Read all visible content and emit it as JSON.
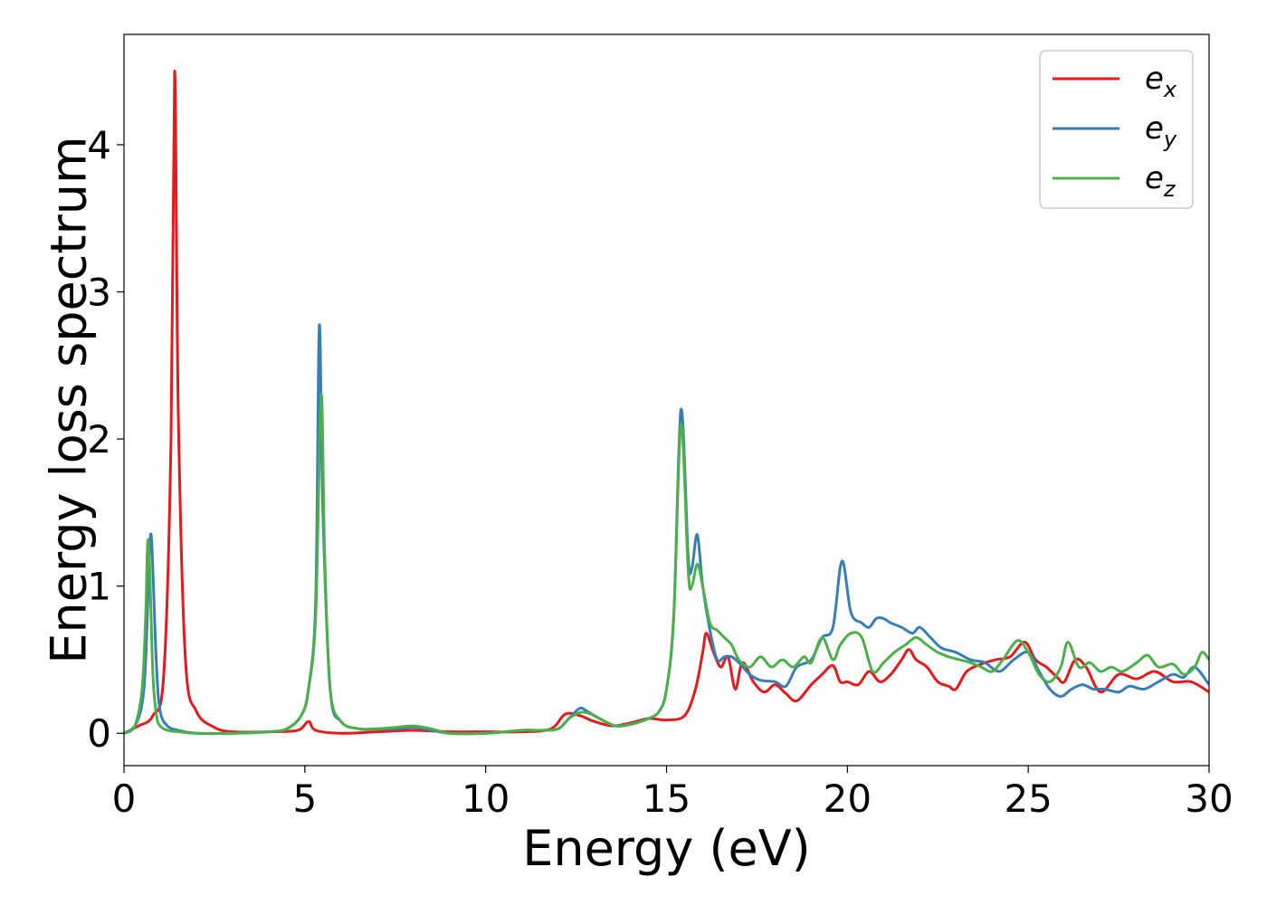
{
  "chart_data": {
    "type": "line",
    "xlabel": "Energy (eV)",
    "ylabel": "Energy loss spectrum",
    "xlim": [
      0,
      30
    ],
    "ylim": [
      -0.22,
      4.75
    ],
    "xticks": [
      0,
      5,
      10,
      15,
      20,
      25,
      30
    ],
    "yticks": [
      0,
      1,
      2,
      3,
      4
    ],
    "grid": false,
    "legend_position": "top-right",
    "series": [
      {
        "name": "e",
        "subscript": "x",
        "color": "#e41a1c",
        "x": [
          0,
          0.4,
          0.8,
          1.1,
          1.3,
          1.4,
          1.5,
          1.7,
          2.0,
          2.5,
          3.0,
          4.0,
          4.8,
          5.1,
          5.3,
          6.0,
          7.0,
          8.0,
          9.0,
          10.0,
          11.0,
          11.8,
          12.2,
          12.6,
          13.0,
          13.5,
          14.0,
          14.5,
          15.0,
          15.5,
          15.8,
          16.0,
          16.1,
          16.3,
          16.5,
          16.7,
          16.9,
          17.1,
          17.4,
          17.7,
          18.0,
          18.3,
          18.6,
          19.0,
          19.3,
          19.6,
          19.8,
          20.0,
          20.3,
          20.6,
          20.9,
          21.2,
          21.5,
          21.7,
          21.9,
          22.2,
          22.5,
          22.8,
          23.0,
          23.3,
          23.7,
          24.1,
          24.5,
          24.9,
          25.2,
          25.5,
          25.8,
          26.0,
          26.3,
          26.6,
          27.0,
          27.5,
          28.0,
          28.5,
          29.0,
          29.5,
          30.0
        ],
        "y": [
          0.0,
          0.05,
          0.12,
          0.4,
          2.0,
          4.5,
          2.2,
          0.5,
          0.15,
          0.04,
          0.01,
          0.01,
          0.02,
          0.08,
          0.02,
          0.0,
          0.01,
          0.02,
          0.01,
          0.01,
          0.01,
          0.03,
          0.13,
          0.12,
          0.08,
          0.05,
          0.07,
          0.1,
          0.09,
          0.12,
          0.3,
          0.55,
          0.68,
          0.55,
          0.45,
          0.52,
          0.3,
          0.48,
          0.35,
          0.28,
          0.33,
          0.27,
          0.22,
          0.33,
          0.4,
          0.46,
          0.35,
          0.35,
          0.33,
          0.42,
          0.35,
          0.4,
          0.5,
          0.57,
          0.5,
          0.45,
          0.35,
          0.32,
          0.3,
          0.42,
          0.47,
          0.5,
          0.52,
          0.62,
          0.5,
          0.45,
          0.38,
          0.35,
          0.5,
          0.45,
          0.28,
          0.4,
          0.37,
          0.42,
          0.35,
          0.35,
          0.28
        ]
      },
      {
        "name": "e",
        "subscript": "y",
        "color": "#377eb8",
        "x": [
          0,
          0.3,
          0.5,
          0.6,
          0.7,
          0.75,
          0.8,
          0.9,
          1.0,
          1.2,
          1.5,
          2.0,
          3.0,
          4.0,
          4.5,
          4.9,
          5.1,
          5.3,
          5.4,
          5.5,
          5.7,
          6.0,
          6.5,
          7.0,
          7.5,
          8.0,
          8.5,
          9.0,
          10.0,
          11.0,
          11.5,
          12.0,
          12.3,
          12.6,
          12.8,
          13.0,
          13.3,
          13.6,
          14.0,
          14.5,
          14.8,
          15.0,
          15.2,
          15.4,
          15.6,
          15.7,
          15.85,
          16.0,
          16.2,
          16.4,
          16.6,
          16.8,
          17.0,
          17.3,
          17.6,
          18.0,
          18.3,
          18.6,
          19.0,
          19.3,
          19.6,
          19.85,
          20.1,
          20.4,
          20.6,
          20.8,
          21.0,
          21.2,
          21.5,
          21.8,
          22.0,
          22.3,
          22.6,
          23.0,
          23.4,
          23.8,
          24.2,
          24.6,
          25.0,
          25.3,
          25.6,
          25.9,
          26.2,
          26.5,
          26.8,
          27.1,
          27.5,
          27.8,
          28.2,
          28.6,
          29.0,
          29.3,
          29.6,
          30.0
        ],
        "y": [
          0.0,
          0.05,
          0.2,
          0.5,
          1.2,
          1.35,
          1.1,
          0.45,
          0.15,
          0.05,
          0.02,
          0.0,
          0.0,
          0.01,
          0.03,
          0.12,
          0.3,
          0.9,
          2.77,
          1.5,
          0.3,
          0.08,
          0.03,
          0.03,
          0.03,
          0.04,
          0.02,
          0.0,
          0.0,
          0.02,
          0.02,
          0.03,
          0.1,
          0.17,
          0.15,
          0.12,
          0.08,
          0.05,
          0.06,
          0.1,
          0.15,
          0.3,
          0.8,
          2.2,
          1.2,
          1.12,
          1.35,
          1.0,
          0.7,
          0.5,
          0.52,
          0.52,
          0.48,
          0.4,
          0.36,
          0.35,
          0.32,
          0.45,
          0.5,
          0.65,
          0.72,
          1.17,
          0.82,
          0.75,
          0.72,
          0.78,
          0.78,
          0.75,
          0.72,
          0.68,
          0.72,
          0.65,
          0.58,
          0.55,
          0.5,
          0.48,
          0.42,
          0.5,
          0.55,
          0.42,
          0.3,
          0.25,
          0.3,
          0.33,
          0.3,
          0.3,
          0.28,
          0.32,
          0.3,
          0.35,
          0.4,
          0.38,
          0.45,
          0.33
        ]
      },
      {
        "name": "e",
        "subscript": "z",
        "color": "#4daf4a",
        "x": [
          0,
          0.3,
          0.5,
          0.6,
          0.65,
          0.7,
          0.8,
          0.9,
          1.0,
          1.2,
          1.5,
          2.0,
          3.0,
          4.0,
          4.5,
          4.9,
          5.1,
          5.3,
          5.45,
          5.55,
          5.7,
          6.0,
          6.5,
          7.0,
          7.5,
          8.0,
          8.5,
          9.0,
          10.0,
          11.0,
          11.5,
          12.0,
          12.3,
          12.6,
          12.8,
          13.0,
          13.3,
          13.6,
          14.0,
          14.5,
          14.8,
          15.0,
          15.2,
          15.4,
          15.6,
          15.7,
          15.85,
          16.0,
          16.2,
          16.4,
          16.6,
          16.8,
          17.0,
          17.3,
          17.6,
          17.9,
          18.2,
          18.5,
          18.8,
          19.0,
          19.3,
          19.6,
          19.8,
          20.1,
          20.4,
          20.7,
          21.0,
          21.3,
          21.6,
          21.9,
          22.2,
          22.5,
          22.8,
          23.1,
          23.4,
          23.7,
          24.0,
          24.3,
          24.7,
          25.0,
          25.3,
          25.6,
          25.9,
          26.1,
          26.4,
          26.7,
          27.0,
          27.3,
          27.6,
          28.0,
          28.3,
          28.6,
          29.0,
          29.3,
          29.6,
          29.8,
          30.0
        ],
        "y": [
          0.0,
          0.05,
          0.3,
          0.8,
          1.27,
          1.2,
          0.4,
          0.12,
          0.05,
          0.02,
          0.01,
          0.0,
          0.0,
          0.01,
          0.03,
          0.12,
          0.3,
          0.8,
          2.3,
          1.2,
          0.3,
          0.08,
          0.03,
          0.03,
          0.04,
          0.05,
          0.03,
          0.0,
          0.0,
          0.02,
          0.02,
          0.03,
          0.1,
          0.14,
          0.14,
          0.12,
          0.08,
          0.05,
          0.06,
          0.1,
          0.15,
          0.3,
          0.8,
          2.1,
          1.1,
          1.0,
          1.15,
          1.0,
          0.75,
          0.7,
          0.65,
          0.6,
          0.5,
          0.45,
          0.52,
          0.45,
          0.5,
          0.45,
          0.52,
          0.48,
          0.65,
          0.5,
          0.6,
          0.68,
          0.65,
          0.42,
          0.48,
          0.55,
          0.6,
          0.65,
          0.6,
          0.55,
          0.52,
          0.5,
          0.48,
          0.45,
          0.42,
          0.5,
          0.63,
          0.55,
          0.4,
          0.35,
          0.45,
          0.62,
          0.45,
          0.48,
          0.42,
          0.45,
          0.42,
          0.48,
          0.53,
          0.45,
          0.47,
          0.4,
          0.45,
          0.55,
          0.5
        ]
      }
    ]
  }
}
